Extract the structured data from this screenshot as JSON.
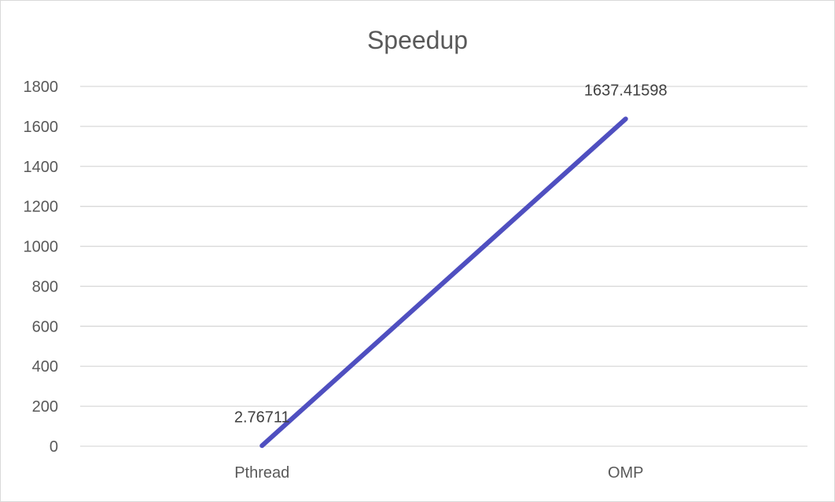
{
  "chart_data": {
    "type": "line",
    "title": "Speedup",
    "xlabel": "",
    "ylabel": "",
    "categories": [
      "Pthread",
      "OMP"
    ],
    "series": [
      {
        "values": [
          2.76711,
          1637.41598
        ],
        "color": "#4f4fc0"
      }
    ],
    "data_labels": [
      "2.76711",
      "1637.41598"
    ],
    "ylim": [
      0,
      1800
    ],
    "yticks": [
      0,
      200,
      400,
      600,
      800,
      1000,
      1200,
      1400,
      1600,
      1800
    ],
    "grid": true,
    "legend": "none"
  }
}
